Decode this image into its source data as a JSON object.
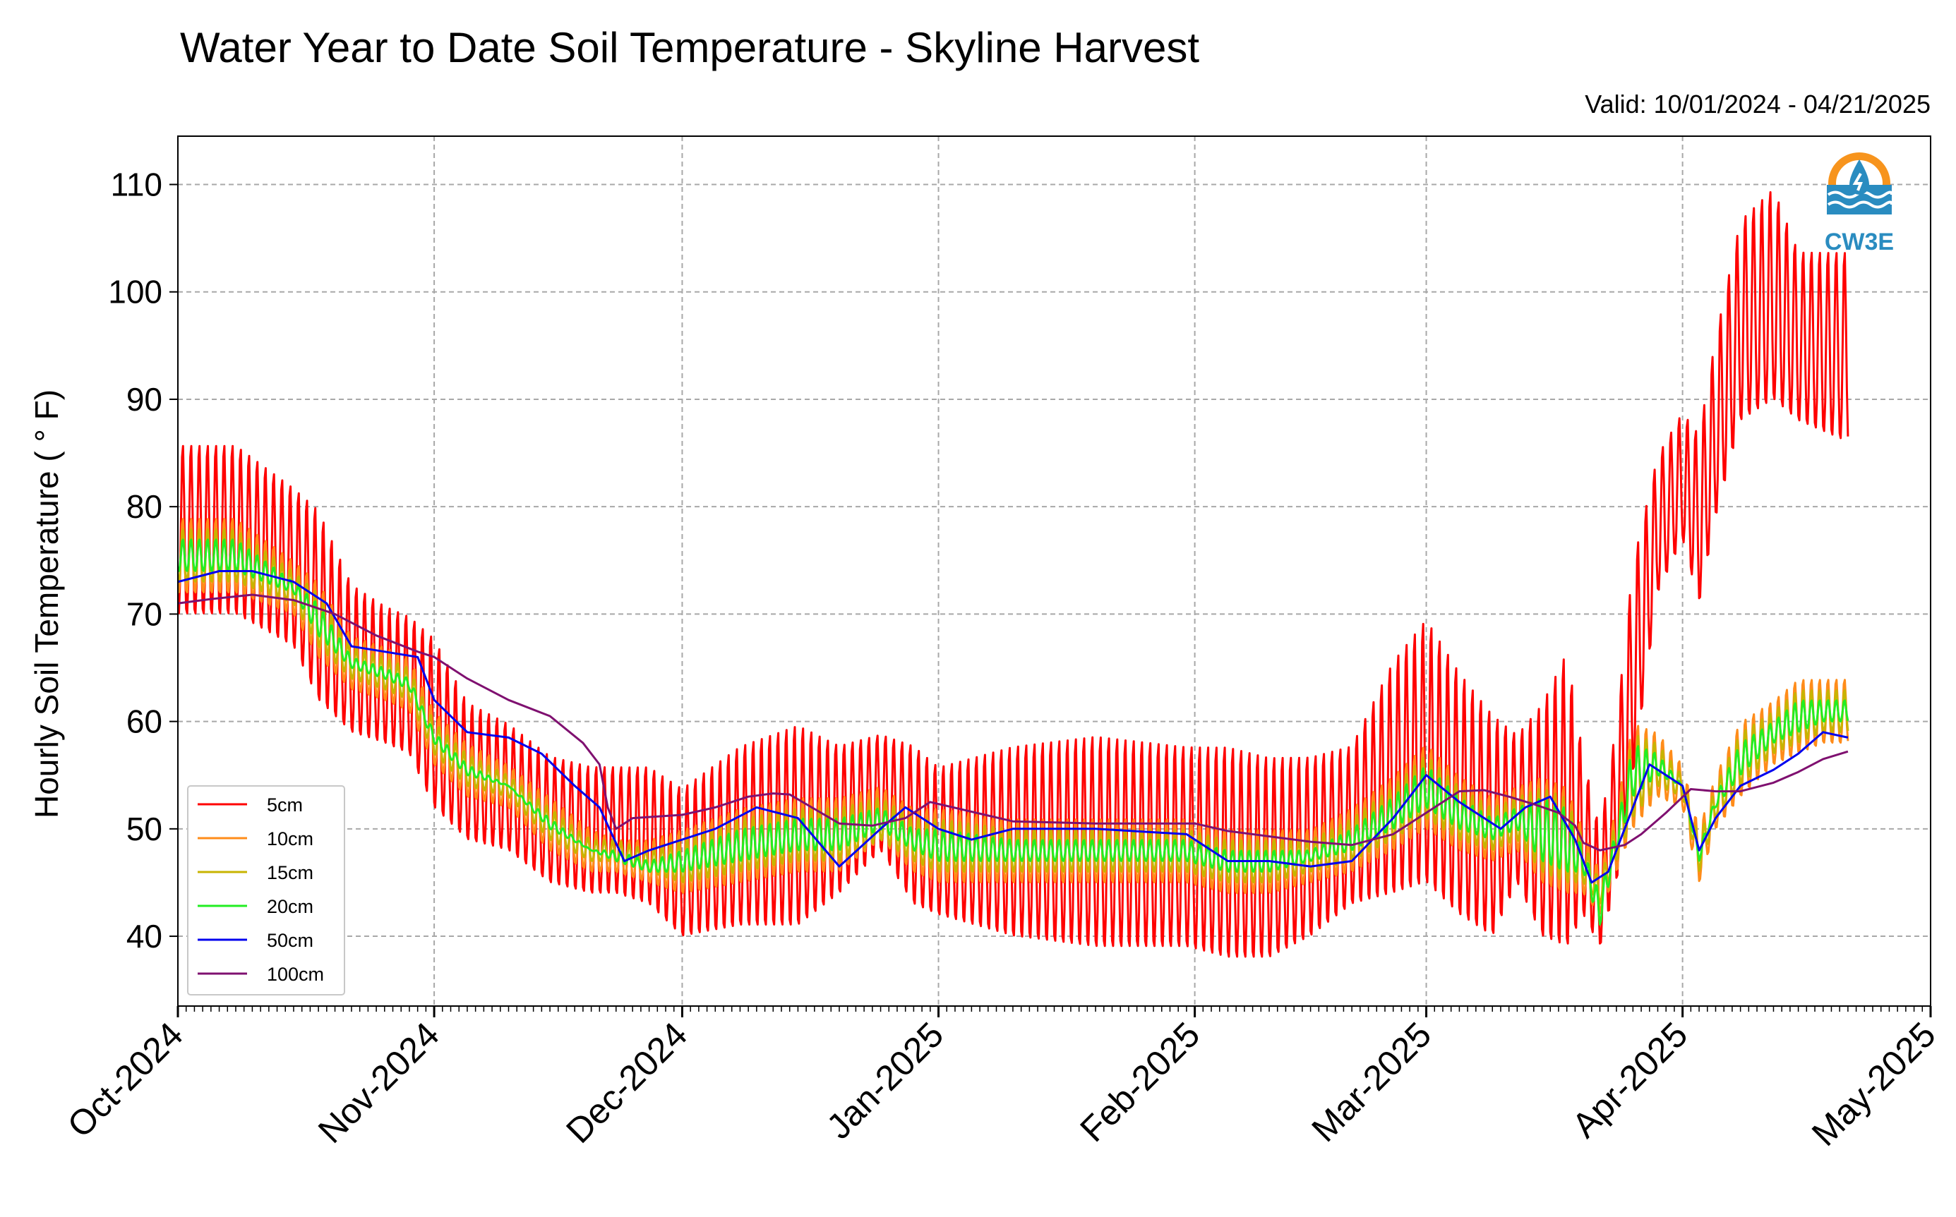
{
  "logo": {
    "text": "CW3E",
    "ring_color": "#f7941d",
    "wave_color": "#2a8cc0"
  },
  "chart_data": {
    "type": "line",
    "title": "Water Year to Date Soil Temperature - Skyline Harvest",
    "subtitle": "Valid: 10/01/2024 - 04/21/2025",
    "xlabel": "",
    "ylabel": "Hourly Soil Temperature ( ° F)",
    "ylim": [
      33.5,
      114.5
    ],
    "xlim": [
      "2024-10-01",
      "2025-05-01"
    ],
    "yticks": [
      40,
      50,
      60,
      70,
      80,
      90,
      100,
      110
    ],
    "xticks": [
      {
        "date": "2024-10-01",
        "label": "Oct-2024"
      },
      {
        "date": "2024-11-01",
        "label": "Nov-2024"
      },
      {
        "date": "2024-12-01",
        "label": "Dec-2024"
      },
      {
        "date": "2025-01-01",
        "label": "Jan-2025"
      },
      {
        "date": "2025-02-01",
        "label": "Feb-2025"
      },
      {
        "date": "2025-03-01",
        "label": "Mar-2025"
      },
      {
        "date": "2025-04-01",
        "label": "Apr-2025"
      },
      {
        "date": "2025-05-01",
        "label": "May-2025"
      }
    ],
    "grid": true,
    "legend_position": "lower-left",
    "series": [
      {
        "name": "5cm",
        "color": "#ff0000",
        "x": [
          "2024-10-01",
          "2024-10-08",
          "2024-10-15",
          "2024-10-18",
          "2024-10-22",
          "2024-10-26",
          "2024-10-29",
          "2024-11-01",
          "2024-11-05",
          "2024-11-10",
          "2024-11-15",
          "2024-11-20",
          "2024-11-23",
          "2024-11-27",
          "2024-12-01",
          "2024-12-08",
          "2024-12-15",
          "2024-12-20",
          "2024-12-25",
          "2024-12-29",
          "2025-01-01",
          "2025-01-10",
          "2025-01-20",
          "2025-01-31",
          "2025-02-05",
          "2025-02-10",
          "2025-02-15",
          "2025-02-20",
          "2025-02-25",
          "2025-03-01",
          "2025-03-05",
          "2025-03-09",
          "2025-03-12",
          "2025-03-15",
          "2025-03-18",
          "2025-03-20",
          "2025-03-22",
          "2025-03-24",
          "2025-03-26",
          "2025-03-29",
          "2025-04-01",
          "2025-04-03",
          "2025-04-05",
          "2025-04-08",
          "2025-04-12",
          "2025-04-15",
          "2025-04-18",
          "2025-04-21"
        ],
        "low": [
          70,
          70,
          67,
          62,
          59,
          58,
          57,
          52,
          49,
          48,
          45,
          44,
          44,
          43,
          40,
          41,
          41,
          44,
          48,
          43,
          42,
          40,
          39,
          39,
          38,
          38,
          40,
          43,
          44,
          45,
          42,
          40,
          45,
          40,
          39,
          42,
          39,
          45,
          55,
          72,
          77,
          71,
          79,
          88,
          90,
          88,
          87,
          86
        ],
        "high": [
          86,
          86,
          82,
          80,
          73,
          71,
          70,
          68,
          62,
          60,
          57,
          56,
          56,
          56,
          54,
          58,
          60,
          58,
          59,
          58,
          56,
          58,
          59,
          58,
          58,
          57,
          57,
          58,
          66,
          70,
          65,
          61,
          59,
          62,
          67,
          57,
          50,
          60,
          75,
          85,
          89,
          87,
          96,
          107,
          110,
          104,
          104,
          104
        ]
      },
      {
        "name": "10cm",
        "color": "#ff8c1a",
        "x": [
          "2024-10-01",
          "2024-10-08",
          "2024-10-15",
          "2024-10-18",
          "2024-10-22",
          "2024-10-26",
          "2024-10-29",
          "2024-11-01",
          "2024-11-05",
          "2024-11-10",
          "2024-11-15",
          "2024-11-20",
          "2024-11-23",
          "2024-11-27",
          "2024-12-01",
          "2024-12-08",
          "2024-12-15",
          "2024-12-20",
          "2024-12-25",
          "2024-12-29",
          "2025-01-01",
          "2025-01-10",
          "2025-01-20",
          "2025-01-31",
          "2025-02-05",
          "2025-02-10",
          "2025-02-15",
          "2025-02-20",
          "2025-02-25",
          "2025-03-01",
          "2025-03-05",
          "2025-03-09",
          "2025-03-12",
          "2025-03-15",
          "2025-03-18",
          "2025-03-20",
          "2025-03-22",
          "2025-03-24",
          "2025-03-26",
          "2025-03-29",
          "2025-04-01",
          "2025-04-03",
          "2025-04-05",
          "2025-04-08",
          "2025-04-12",
          "2025-04-15",
          "2025-04-18",
          "2025-04-21"
        ],
        "low": [
          72,
          72,
          70,
          66,
          63,
          62,
          61,
          56,
          53,
          52,
          48,
          46,
          46,
          45,
          44,
          45,
          46,
          46,
          49,
          46,
          45,
          45,
          45,
          45,
          44,
          44,
          45,
          46,
          48,
          50,
          48,
          47,
          48,
          45,
          44,
          44,
          42,
          46,
          50,
          53,
          52,
          45,
          50,
          53,
          56,
          57,
          58,
          58
        ],
        "high": [
          79,
          79,
          75,
          73,
          68,
          67,
          66,
          61,
          58,
          56,
          53,
          50,
          49,
          49,
          50,
          52,
          53,
          53,
          54,
          52,
          52,
          51,
          51,
          51,
          50,
          50,
          50,
          52,
          55,
          58,
          55,
          53,
          54,
          55,
          54,
          50,
          46,
          52,
          60,
          59,
          56,
          50,
          55,
          60,
          62,
          64,
          64,
          64
        ]
      },
      {
        "name": "15cm",
        "color": "#c8b400",
        "x": [
          "2024-10-01",
          "2024-10-08",
          "2024-10-15",
          "2024-10-18",
          "2024-10-22",
          "2024-10-26",
          "2024-10-29",
          "2024-11-01",
          "2024-11-05",
          "2024-11-10",
          "2024-11-15",
          "2024-11-20",
          "2024-11-23",
          "2024-11-27",
          "2024-12-01",
          "2024-12-08",
          "2024-12-15",
          "2024-12-20",
          "2024-12-25",
          "2024-12-29",
          "2025-01-01",
          "2025-01-10",
          "2025-01-20",
          "2025-01-31",
          "2025-02-05",
          "2025-02-10",
          "2025-02-15",
          "2025-02-20",
          "2025-02-25",
          "2025-03-01",
          "2025-03-05",
          "2025-03-09",
          "2025-03-12",
          "2025-03-15",
          "2025-03-18",
          "2025-03-20",
          "2025-03-22",
          "2025-03-24",
          "2025-03-26",
          "2025-03-29",
          "2025-04-01",
          "2025-04-03",
          "2025-04-05",
          "2025-04-08",
          "2025-04-12",
          "2025-04-15",
          "2025-04-18",
          "2025-04-21"
        ],
        "low": [
          73,
          73,
          71,
          67,
          64,
          63,
          62,
          57,
          54,
          53,
          49,
          47,
          47,
          46,
          45,
          46,
          47,
          47,
          49,
          47,
          46,
          46,
          46,
          46,
          45,
          45,
          46,
          47,
          49,
          51,
          49,
          48,
          49,
          46,
          45,
          45,
          43,
          47,
          51,
          54,
          53,
          46,
          51,
          54,
          57,
          58,
          59,
          59
        ],
        "high": [
          78,
          78,
          74,
          72,
          67,
          66,
          65,
          60,
          57,
          55,
          52,
          49,
          49,
          48,
          49,
          51,
          52,
          52,
          53,
          51,
          51,
          50,
          50,
          50,
          49,
          49,
          49,
          51,
          54,
          57,
          54,
          52,
          53,
          54,
          53,
          49,
          45,
          51,
          59,
          58,
          55,
          49,
          54,
          59,
          61,
          63,
          63,
          63
        ]
      },
      {
        "name": "20cm",
        "color": "#22ee22",
        "x": [
          "2024-10-01",
          "2024-10-08",
          "2024-10-15",
          "2024-10-18",
          "2024-10-22",
          "2024-10-26",
          "2024-10-29",
          "2024-11-01",
          "2024-11-05",
          "2024-11-10",
          "2024-11-15",
          "2024-11-20",
          "2024-11-23",
          "2024-11-27",
          "2024-12-01",
          "2024-12-08",
          "2024-12-15",
          "2024-12-20",
          "2024-12-25",
          "2024-12-29",
          "2025-01-01",
          "2025-01-10",
          "2025-01-20",
          "2025-01-31",
          "2025-02-05",
          "2025-02-10",
          "2025-02-15",
          "2025-02-20",
          "2025-02-25",
          "2025-03-01",
          "2025-03-05",
          "2025-03-09",
          "2025-03-12",
          "2025-03-15",
          "2025-03-18",
          "2025-03-20",
          "2025-03-22",
          "2025-03-24",
          "2025-03-26",
          "2025-03-29",
          "2025-04-01",
          "2025-04-03",
          "2025-04-05",
          "2025-04-08",
          "2025-04-12",
          "2025-04-15",
          "2025-04-18",
          "2025-04-21"
        ],
        "low": [
          74,
          74,
          72,
          68,
          65,
          64,
          63,
          58,
          55,
          54,
          50,
          48,
          47,
          46,
          46,
          47,
          48,
          48,
          50,
          48,
          47,
          47,
          47,
          47,
          46,
          46,
          47,
          48,
          50,
          52,
          50,
          49,
          50,
          47,
          46,
          46,
          41,
          48,
          53,
          55,
          54,
          47,
          52,
          55,
          58,
          59,
          60,
          60
        ],
        "high": [
          77,
          77,
          73,
          71,
          66,
          65,
          64,
          59,
          56,
          54,
          51,
          48,
          48,
          47,
          48,
          50,
          51,
          51,
          52,
          50,
          50,
          49,
          49,
          49,
          48,
          48,
          48,
          50,
          53,
          56,
          53,
          51,
          52,
          53,
          52,
          48,
          44,
          50,
          58,
          57,
          54,
          48,
          53,
          58,
          60,
          62,
          62,
          62
        ]
      },
      {
        "name": "50cm",
        "color": "#0000ee",
        "x": [
          "2024-10-01",
          "2024-10-06",
          "2024-10-10",
          "2024-10-15",
          "2024-10-19",
          "2024-10-22",
          "2024-10-26",
          "2024-10-30",
          "2024-11-01",
          "2024-11-05",
          "2024-11-10",
          "2024-11-14",
          "2024-11-18",
          "2024-11-21",
          "2024-11-24",
          "2024-11-27",
          "2024-12-01",
          "2024-12-05",
          "2024-12-10",
          "2024-12-15",
          "2024-12-20",
          "2024-12-25",
          "2024-12-28",
          "2025-01-01",
          "2025-01-05",
          "2025-01-10",
          "2025-01-20",
          "2025-01-31",
          "2025-02-05",
          "2025-02-10",
          "2025-02-15",
          "2025-02-20",
          "2025-02-25",
          "2025-03-01",
          "2025-03-05",
          "2025-03-10",
          "2025-03-13",
          "2025-03-16",
          "2025-03-19",
          "2025-03-21",
          "2025-03-23",
          "2025-03-25",
          "2025-03-28",
          "2025-04-01",
          "2025-04-03",
          "2025-04-05",
          "2025-04-08",
          "2025-04-12",
          "2025-04-15",
          "2025-04-18",
          "2025-04-21"
        ],
        "y": [
          73,
          74,
          74,
          73,
          71,
          67,
          66.5,
          66,
          62,
          59,
          58.5,
          57,
          54,
          52,
          47,
          48,
          49,
          50,
          52,
          51,
          46.5,
          50,
          52,
          50,
          49,
          50,
          50,
          49.5,
          47,
          47,
          46.5,
          47,
          51,
          55,
          52.5,
          50,
          52,
          53,
          49,
          45,
          46,
          50,
          56,
          54,
          48,
          51,
          54,
          55.5,
          57,
          59,
          58.5
        ]
      },
      {
        "name": "100cm",
        "color": "#7f1070",
        "x": [
          "2024-10-01",
          "2024-10-05",
          "2024-10-10",
          "2024-10-15",
          "2024-10-20",
          "2024-10-25",
          "2024-10-30",
          "2024-11-01",
          "2024-11-05",
          "2024-11-10",
          "2024-11-15",
          "2024-11-19",
          "2024-11-21",
          "2024-11-22",
          "2024-11-23",
          "2024-11-25",
          "2024-12-01",
          "2024-12-05",
          "2024-12-09",
          "2024-12-12",
          "2024-12-14",
          "2024-12-20",
          "2024-12-24",
          "2024-12-28",
          "2024-12-31",
          "2025-01-10",
          "2025-01-20",
          "2025-02-01",
          "2025-02-05",
          "2025-02-10",
          "2025-02-15",
          "2025-02-20",
          "2025-02-25",
          "2025-03-01",
          "2025-03-05",
          "2025-03-08",
          "2025-03-11",
          "2025-03-14",
          "2025-03-17",
          "2025-03-19",
          "2025-03-20",
          "2025-03-22",
          "2025-03-25",
          "2025-03-27",
          "2025-03-30",
          "2025-04-02",
          "2025-04-05",
          "2025-04-08",
          "2025-04-12",
          "2025-04-15",
          "2025-04-18",
          "2025-04-21"
        ],
        "y": [
          71,
          71.4,
          71.8,
          71.3,
          70,
          68,
          66.5,
          66,
          64,
          62,
          60.5,
          58,
          56,
          52,
          50,
          51,
          51.3,
          52,
          53,
          53.3,
          53.2,
          50.5,
          50.3,
          51,
          52.5,
          50.7,
          50.5,
          50.5,
          49.8,
          49.3,
          48.8,
          48.5,
          49.5,
          51.5,
          53.5,
          53.6,
          53,
          52.3,
          51.5,
          50.3,
          48.7,
          48,
          48.5,
          49.5,
          51.5,
          53.7,
          53.5,
          53.5,
          54.3,
          55.3,
          56.5,
          57.2
        ]
      }
    ]
  }
}
